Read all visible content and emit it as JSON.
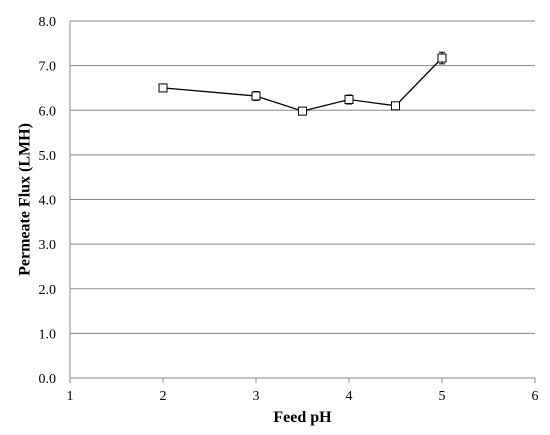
{
  "chart_data": {
    "type": "line",
    "xlabel": "Feed pH",
    "ylabel": "Permeate Flux (LMH)",
    "xlim": [
      1,
      6
    ],
    "ylim": [
      0,
      8
    ],
    "x_ticks": [
      "1",
      "2",
      "3",
      "4",
      "5",
      "6"
    ],
    "y_ticks": [
      "0.0",
      "1.0",
      "2.0",
      "3.0",
      "4.0",
      "5.0",
      "6.0",
      "7.0",
      "8.0"
    ],
    "grid": "horizontal",
    "series": [
      {
        "x": [
          2,
          3,
          3.5,
          4,
          4.5,
          5
        ],
        "y": [
          6.5,
          6.32,
          5.98,
          6.24,
          6.1,
          7.17
        ],
        "error": [
          0.08,
          0.1,
          0.07,
          0.1,
          0.07,
          0.13
        ],
        "marker": "hollow-square",
        "color": "#000000"
      }
    ]
  }
}
